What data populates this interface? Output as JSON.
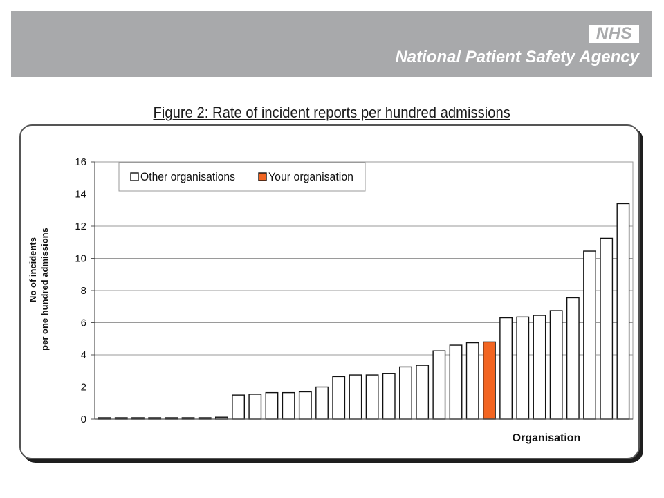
{
  "header": {
    "logo_text": "NHS",
    "agency_name": "National Patient Safety Agency",
    "banner_color": "#a8a9ab"
  },
  "figure_title": "Figure 2:  Rate of incident reports per hundred admissions",
  "chart_data": {
    "type": "bar",
    "title": "Figure 2:  Rate of incident reports per hundred admissions",
    "xlabel": "Organisation",
    "ylabel_lines": [
      "No of incidents",
      "per one hundred admissions"
    ],
    "ylim": [
      0,
      16
    ],
    "yticks": [
      0,
      2,
      4,
      6,
      8,
      10,
      12,
      14,
      16
    ],
    "grid": true,
    "legend_position": "top-left",
    "series": [
      {
        "name": "Other organisations",
        "color": "#ffffff"
      },
      {
        "name": "Your organisation",
        "color": "#f26522"
      }
    ],
    "values": [
      0.0,
      0.0,
      0.0,
      0.0,
      0.05,
      0.05,
      0.08,
      0.12,
      1.5,
      1.55,
      1.65,
      1.65,
      1.7,
      2.0,
      2.65,
      2.75,
      2.75,
      2.85,
      3.25,
      3.35,
      4.25,
      4.6,
      4.75,
      4.8,
      6.3,
      6.35,
      6.45,
      6.75,
      7.55,
      10.45,
      11.25,
      13.4
    ],
    "highlight_index": 23
  }
}
